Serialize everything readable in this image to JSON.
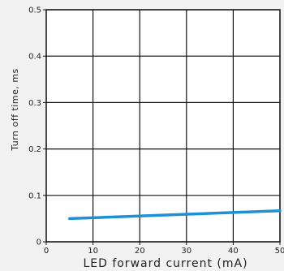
{
  "chart_data": {
    "type": "line",
    "xlabel": "LED forward current (mA)",
    "ylabel": "Turn off time, ms",
    "xlim": [
      0,
      50
    ],
    "ylim": [
      0,
      0.5
    ],
    "x_ticks": [
      "0",
      "10",
      "20",
      "30",
      "40",
      "50"
    ],
    "y_ticks": [
      "0",
      "0.1",
      "0.2",
      "0.3",
      "0.4",
      "0.5"
    ],
    "grid": true,
    "series": [
      {
        "color": "#1e90d6",
        "x": [
          5,
          50
        ],
        "y": [
          0.05,
          0.067
        ]
      }
    ]
  }
}
